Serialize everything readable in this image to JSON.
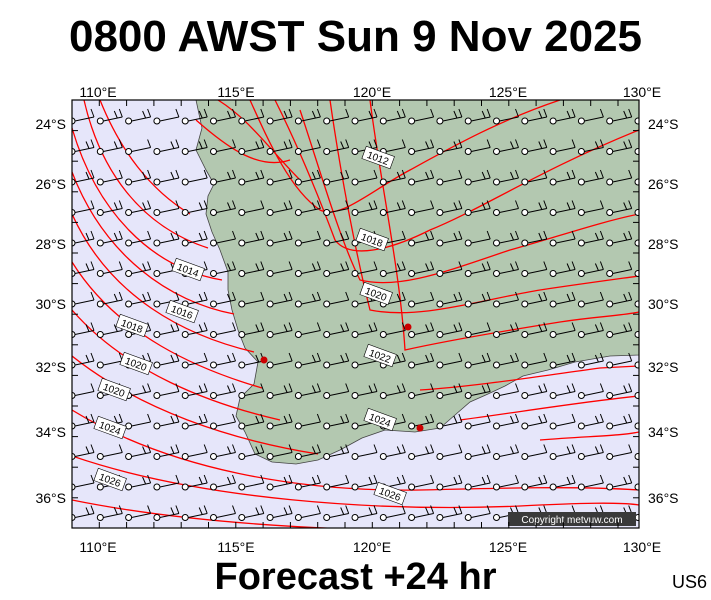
{
  "header": {
    "title": "0800 AWST Sun 9 Nov 2025"
  },
  "footer": {
    "subtitle": "Forecast +24 hr",
    "code": "US6"
  },
  "map": {
    "lon_labels": [
      "110°E",
      "115°E",
      "120°E",
      "125°E",
      "130°E"
    ],
    "lat_labels": [
      "24°S",
      "26°S",
      "28°S",
      "30°S",
      "32°S",
      "34°S",
      "36°S"
    ],
    "isobar_labels": [
      "1012",
      "1014",
      "1016",
      "1018",
      "1018",
      "1020",
      "1020",
      "1020",
      "1022",
      "1024",
      "1024",
      "1026",
      "1026"
    ],
    "copyright": "Copyright metvuw.com",
    "colors": {
      "sea": "#e6e6fa",
      "land": "#b3c8b0",
      "isobar": "#ff0000",
      "frame": "#000000"
    }
  }
}
